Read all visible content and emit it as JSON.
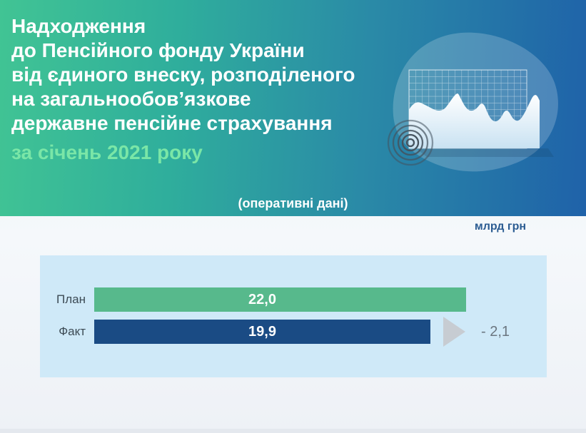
{
  "header": {
    "title_lines": [
      "Надходження",
      "до Пенсійного фонду України",
      "від єдиного внеску, розподіленого",
      "на загальнообов’язкове",
      "державне пенсійне страхування"
    ],
    "period": "за січень 2021 року",
    "note": "(оперативні дані)",
    "accent_green": "#7ae6a7",
    "gradient_left": "#41c494",
    "gradient_right": "#1f62a9"
  },
  "unit_label": "млрд грн",
  "chart_data": {
    "type": "bar",
    "orientation": "horizontal",
    "title": "Надходження до Пенсійного фонду України від єдиного внеску за січень 2021 року",
    "unit": "млрд грн",
    "categories": [
      "План",
      "Факт"
    ],
    "values": [
      22.0,
      19.9
    ],
    "value_labels": [
      "22,0",
      "19,9"
    ],
    "difference": -2.1,
    "difference_label": "- 2,1",
    "xlim": [
      0,
      22
    ],
    "grid": false,
    "colors": {
      "plan": "#57b98c",
      "fact": "#1a4b84",
      "card_bg": "#cfe9f8",
      "arrow": "#c7ccd2"
    }
  }
}
